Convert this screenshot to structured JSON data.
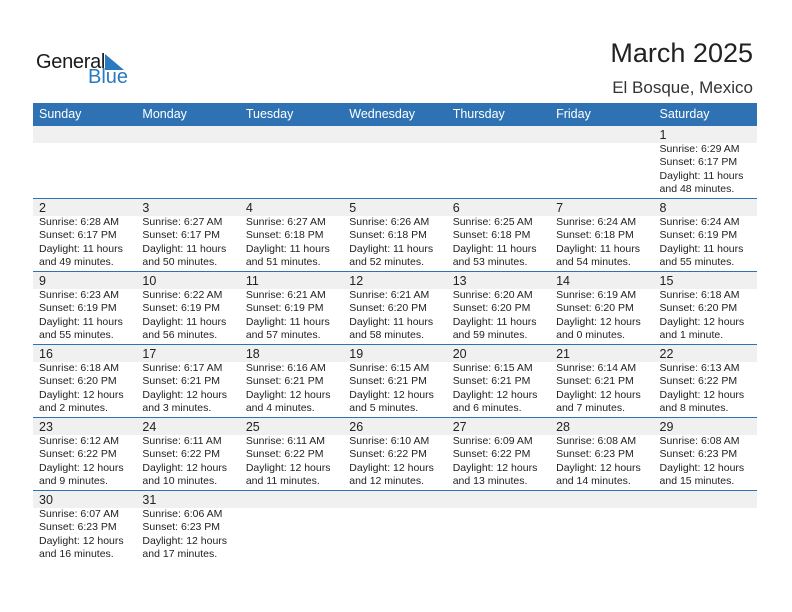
{
  "logo": {
    "general": "General",
    "blue": "Blue"
  },
  "title": "March 2025",
  "location": "El Bosque, Mexico",
  "colors": {
    "header_bg": "#2e72b3",
    "band_bg": "#f0f0f0",
    "logo_blue": "#2a7abf"
  },
  "weekdays": [
    "Sunday",
    "Monday",
    "Tuesday",
    "Wednesday",
    "Thursday",
    "Friday",
    "Saturday"
  ],
  "weeks": [
    [
      null,
      null,
      null,
      null,
      null,
      null,
      {
        "day": "1",
        "sunrise": "Sunrise: 6:29 AM",
        "sunset": "Sunset: 6:17 PM",
        "daylight1": "Daylight: 11 hours",
        "daylight2": "and 48 minutes."
      }
    ],
    [
      {
        "day": "2",
        "sunrise": "Sunrise: 6:28 AM",
        "sunset": "Sunset: 6:17 PM",
        "daylight1": "Daylight: 11 hours",
        "daylight2": "and 49 minutes."
      },
      {
        "day": "3",
        "sunrise": "Sunrise: 6:27 AM",
        "sunset": "Sunset: 6:17 PM",
        "daylight1": "Daylight: 11 hours",
        "daylight2": "and 50 minutes."
      },
      {
        "day": "4",
        "sunrise": "Sunrise: 6:27 AM",
        "sunset": "Sunset: 6:18 PM",
        "daylight1": "Daylight: 11 hours",
        "daylight2": "and 51 minutes."
      },
      {
        "day": "5",
        "sunrise": "Sunrise: 6:26 AM",
        "sunset": "Sunset: 6:18 PM",
        "daylight1": "Daylight: 11 hours",
        "daylight2": "and 52 minutes."
      },
      {
        "day": "6",
        "sunrise": "Sunrise: 6:25 AM",
        "sunset": "Sunset: 6:18 PM",
        "daylight1": "Daylight: 11 hours",
        "daylight2": "and 53 minutes."
      },
      {
        "day": "7",
        "sunrise": "Sunrise: 6:24 AM",
        "sunset": "Sunset: 6:18 PM",
        "daylight1": "Daylight: 11 hours",
        "daylight2": "and 54 minutes."
      },
      {
        "day": "8",
        "sunrise": "Sunrise: 6:24 AM",
        "sunset": "Sunset: 6:19 PM",
        "daylight1": "Daylight: 11 hours",
        "daylight2": "and 55 minutes."
      }
    ],
    [
      {
        "day": "9",
        "sunrise": "Sunrise: 6:23 AM",
        "sunset": "Sunset: 6:19 PM",
        "daylight1": "Daylight: 11 hours",
        "daylight2": "and 55 minutes."
      },
      {
        "day": "10",
        "sunrise": "Sunrise: 6:22 AM",
        "sunset": "Sunset: 6:19 PM",
        "daylight1": "Daylight: 11 hours",
        "daylight2": "and 56 minutes."
      },
      {
        "day": "11",
        "sunrise": "Sunrise: 6:21 AM",
        "sunset": "Sunset: 6:19 PM",
        "daylight1": "Daylight: 11 hours",
        "daylight2": "and 57 minutes."
      },
      {
        "day": "12",
        "sunrise": "Sunrise: 6:21 AM",
        "sunset": "Sunset: 6:20 PM",
        "daylight1": "Daylight: 11 hours",
        "daylight2": "and 58 minutes."
      },
      {
        "day": "13",
        "sunrise": "Sunrise: 6:20 AM",
        "sunset": "Sunset: 6:20 PM",
        "daylight1": "Daylight: 11 hours",
        "daylight2": "and 59 minutes."
      },
      {
        "day": "14",
        "sunrise": "Sunrise: 6:19 AM",
        "sunset": "Sunset: 6:20 PM",
        "daylight1": "Daylight: 12 hours",
        "daylight2": "and 0 minutes."
      },
      {
        "day": "15",
        "sunrise": "Sunrise: 6:18 AM",
        "sunset": "Sunset: 6:20 PM",
        "daylight1": "Daylight: 12 hours",
        "daylight2": "and 1 minute."
      }
    ],
    [
      {
        "day": "16",
        "sunrise": "Sunrise: 6:18 AM",
        "sunset": "Sunset: 6:20 PM",
        "daylight1": "Daylight: 12 hours",
        "daylight2": "and 2 minutes."
      },
      {
        "day": "17",
        "sunrise": "Sunrise: 6:17 AM",
        "sunset": "Sunset: 6:21 PM",
        "daylight1": "Daylight: 12 hours",
        "daylight2": "and 3 minutes."
      },
      {
        "day": "18",
        "sunrise": "Sunrise: 6:16 AM",
        "sunset": "Sunset: 6:21 PM",
        "daylight1": "Daylight: 12 hours",
        "daylight2": "and 4 minutes."
      },
      {
        "day": "19",
        "sunrise": "Sunrise: 6:15 AM",
        "sunset": "Sunset: 6:21 PM",
        "daylight1": "Daylight: 12 hours",
        "daylight2": "and 5 minutes."
      },
      {
        "day": "20",
        "sunrise": "Sunrise: 6:15 AM",
        "sunset": "Sunset: 6:21 PM",
        "daylight1": "Daylight: 12 hours",
        "daylight2": "and 6 minutes."
      },
      {
        "day": "21",
        "sunrise": "Sunrise: 6:14 AM",
        "sunset": "Sunset: 6:21 PM",
        "daylight1": "Daylight: 12 hours",
        "daylight2": "and 7 minutes."
      },
      {
        "day": "22",
        "sunrise": "Sunrise: 6:13 AM",
        "sunset": "Sunset: 6:22 PM",
        "daylight1": "Daylight: 12 hours",
        "daylight2": "and 8 minutes."
      }
    ],
    [
      {
        "day": "23",
        "sunrise": "Sunrise: 6:12 AM",
        "sunset": "Sunset: 6:22 PM",
        "daylight1": "Daylight: 12 hours",
        "daylight2": "and 9 minutes."
      },
      {
        "day": "24",
        "sunrise": "Sunrise: 6:11 AM",
        "sunset": "Sunset: 6:22 PM",
        "daylight1": "Daylight: 12 hours",
        "daylight2": "and 10 minutes."
      },
      {
        "day": "25",
        "sunrise": "Sunrise: 6:11 AM",
        "sunset": "Sunset: 6:22 PM",
        "daylight1": "Daylight: 12 hours",
        "daylight2": "and 11 minutes."
      },
      {
        "day": "26",
        "sunrise": "Sunrise: 6:10 AM",
        "sunset": "Sunset: 6:22 PM",
        "daylight1": "Daylight: 12 hours",
        "daylight2": "and 12 minutes."
      },
      {
        "day": "27",
        "sunrise": "Sunrise: 6:09 AM",
        "sunset": "Sunset: 6:22 PM",
        "daylight1": "Daylight: 12 hours",
        "daylight2": "and 13 minutes."
      },
      {
        "day": "28",
        "sunrise": "Sunrise: 6:08 AM",
        "sunset": "Sunset: 6:23 PM",
        "daylight1": "Daylight: 12 hours",
        "daylight2": "and 14 minutes."
      },
      {
        "day": "29",
        "sunrise": "Sunrise: 6:08 AM",
        "sunset": "Sunset: 6:23 PM",
        "daylight1": "Daylight: 12 hours",
        "daylight2": "and 15 minutes."
      }
    ],
    [
      {
        "day": "30",
        "sunrise": "Sunrise: 6:07 AM",
        "sunset": "Sunset: 6:23 PM",
        "daylight1": "Daylight: 12 hours",
        "daylight2": "and 16 minutes."
      },
      {
        "day": "31",
        "sunrise": "Sunrise: 6:06 AM",
        "sunset": "Sunset: 6:23 PM",
        "daylight1": "Daylight: 12 hours",
        "daylight2": "and 17 minutes."
      },
      null,
      null,
      null,
      null,
      null
    ]
  ]
}
